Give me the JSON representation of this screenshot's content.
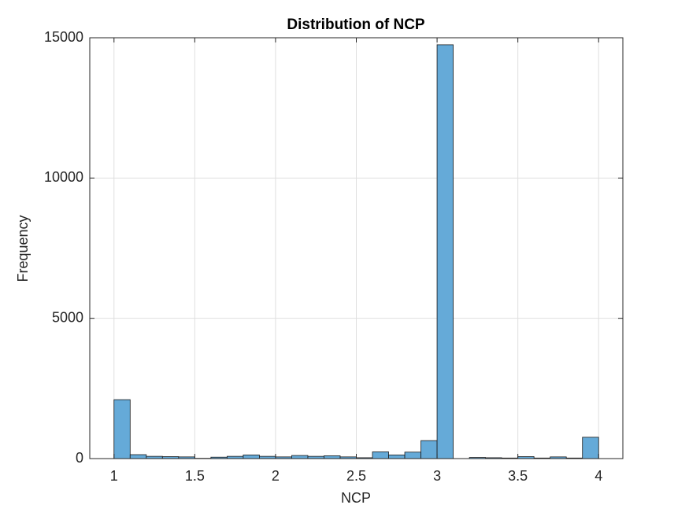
{
  "chart_data": {
    "type": "histogram",
    "title": "Distribution of NCP",
    "x_label": "NCP",
    "y_label": "Frequency",
    "bins": [
      1,
      1.1,
      1.2,
      1.3,
      1.4,
      1.5,
      1.6,
      1.7,
      1.8,
      1.9,
      2,
      2.1,
      2.2,
      2.3,
      2.4,
      2.5,
      2.6,
      2.7,
      2.8,
      2.9,
      3,
      3.1,
      3.2,
      3.3,
      3.4,
      3.5,
      3.6,
      3.7,
      3.8,
      3.9,
      4
    ],
    "counts": [
      2100,
      140,
      80,
      70,
      60,
      10,
      50,
      80,
      130,
      80,
      60,
      110,
      80,
      100,
      60,
      30,
      240,
      130,
      230,
      640,
      14750,
      0,
      40,
      30,
      20,
      70,
      20,
      60,
      20,
      760
    ],
    "color": "#65aad8",
    "xlim": [
      0.85,
      4.15
    ],
    "xticks": [
      1,
      1.5,
      2,
      2.5,
      3,
      3.5,
      4
    ],
    "ylim": [
      0,
      15000
    ],
    "yticks": [
      0,
      5000,
      10000,
      15000
    ],
    "grid": true
  }
}
